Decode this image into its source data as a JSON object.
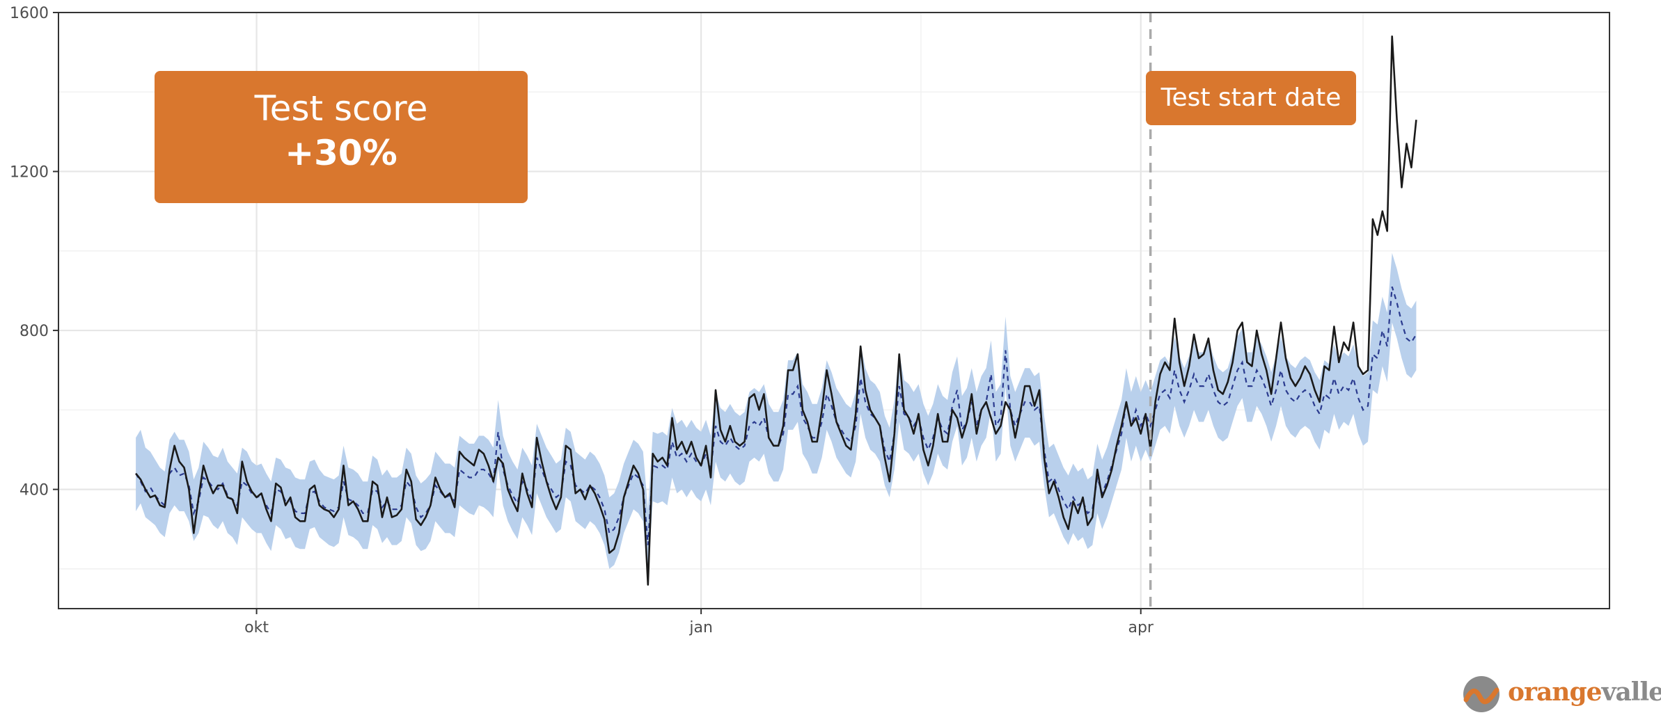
{
  "chart_data": {
    "type": "line",
    "title": "",
    "xlabel": "",
    "ylabel": "",
    "ylim": [
      100,
      1600
    ],
    "x_ticks": [
      "okt",
      "jan",
      "apr"
    ],
    "y_ticks": [
      400,
      800,
      1200,
      1600
    ],
    "grid": true,
    "legend": "none",
    "start_date": "2018-09-06",
    "x_tick_days": [
      25,
      117,
      208
    ],
    "test_start_day": 210,
    "series": [
      {
        "role": "actual",
        "style": "solid",
        "color": "#1a1a1a",
        "values": [
          440,
          425,
          400,
          380,
          385,
          360,
          355,
          450,
          510,
          470,
          455,
          400,
          290,
          380,
          460,
          420,
          390,
          410,
          410,
          380,
          375,
          340,
          470,
          420,
          395,
          380,
          390,
          350,
          320,
          415,
          405,
          360,
          380,
          330,
          320,
          320,
          400,
          410,
          360,
          350,
          345,
          330,
          350,
          460,
          360,
          370,
          350,
          320,
          320,
          420,
          410,
          330,
          380,
          330,
          335,
          350,
          450,
          420,
          325,
          310,
          330,
          360,
          430,
          400,
          380,
          390,
          355,
          495,
          480,
          470,
          460,
          500,
          490,
          460,
          420,
          480,
          465,
          400,
          370,
          345,
          440,
          390,
          355,
          530,
          470,
          420,
          380,
          350,
          380,
          510,
          500,
          390,
          400,
          375,
          410,
          390,
          360,
          325,
          240,
          250,
          290,
          380,
          420,
          460,
          440,
          400,
          160,
          490,
          470,
          480,
          460,
          580,
          500,
          520,
          490,
          520,
          480,
          460,
          510,
          430,
          650,
          550,
          520,
          560,
          520,
          510,
          520,
          630,
          640,
          600,
          640,
          530,
          510,
          510,
          560,
          700,
          700,
          740,
          600,
          570,
          520,
          520,
          600,
          700,
          640,
          570,
          540,
          510,
          500,
          590,
          760,
          650,
          600,
          580,
          560,
          480,
          420,
          540,
          740,
          600,
          580,
          540,
          590,
          500,
          460,
          510,
          590,
          520,
          520,
          600,
          580,
          530,
          570,
          640,
          540,
          600,
          620,
          580,
          540,
          560,
          620,
          600,
          530,
          590,
          660,
          660,
          610,
          650,
          480,
          390,
          420,
          380,
          330,
          300,
          370,
          340,
          380,
          310,
          330,
          450,
          380,
          410,
          450,
          510,
          560,
          620,
          560,
          580,
          540,
          590,
          500,
          620,
          690,
          720,
          700,
          830,
          720,
          660,
          710,
          790,
          730,
          740,
          780,
          700,
          650,
          640,
          670,
          720,
          800,
          820,
          720,
          710,
          800,
          740,
          700,
          640,
          730,
          820,
          730,
          680,
          660,
          680,
          710,
          690,
          650,
          620,
          710,
          700,
          810,
          720,
          770,
          750,
          820,
          710,
          690,
          700,
          1080,
          1040,
          1100,
          1050,
          1540,
          1330,
          1160,
          1270,
          1210,
          1330
        ]
      },
      {
        "role": "predicted",
        "style": "dashed",
        "color": "#2a3a8e",
        "values": [
          440,
          420,
          395,
          405,
          385,
          370,
          360,
          440,
          455,
          435,
          440,
          410,
          340,
          370,
          430,
          420,
          405,
          400,
          415,
          385,
          375,
          360,
          420,
          410,
          390,
          380,
          385,
          360,
          340,
          400,
          395,
          370,
          370,
          345,
          340,
          340,
          390,
          395,
          370,
          355,
          350,
          345,
          355,
          420,
          375,
          370,
          360,
          340,
          340,
          400,
          395,
          355,
          370,
          350,
          350,
          360,
          420,
          405,
          355,
          330,
          340,
          360,
          410,
          395,
          380,
          385,
          370,
          450,
          440,
          430,
          430,
          450,
          450,
          440,
          420,
          545,
          450,
          410,
          385,
          365,
          420,
          400,
          375,
          480,
          450,
          420,
          400,
          380,
          390,
          470,
          460,
          410,
          400,
          390,
          410,
          400,
          380,
          350,
          290,
          300,
          330,
          380,
          410,
          440,
          430,
          410,
          260,
          460,
          455,
          460,
          450,
          520,
          480,
          490,
          470,
          490,
          470,
          460,
          490,
          450,
          560,
          520,
          510,
          530,
          510,
          500,
          510,
          560,
          570,
          560,
          580,
          530,
          510,
          510,
          540,
          640,
          640,
          660,
          580,
          560,
          530,
          530,
          570,
          640,
          610,
          570,
          550,
          530,
          520,
          560,
          680,
          620,
          590,
          580,
          560,
          500,
          470,
          540,
          660,
          590,
          580,
          560,
          580,
          530,
          500,
          530,
          580,
          550,
          540,
          610,
          650,
          550,
          570,
          620,
          560,
          600,
          620,
          690,
          560,
          580,
          750,
          600,
          560,
          590,
          620,
          620,
          600,
          610,
          500,
          420,
          430,
          400,
          370,
          350,
          380,
          360,
          370,
          340,
          350,
          430,
          390,
          420,
          460,
          500,
          540,
          620,
          560,
          600,
          560,
          590,
          560,
          600,
          640,
          650,
          630,
          700,
          650,
          620,
          650,
          690,
          660,
          660,
          690,
          650,
          620,
          610,
          620,
          660,
          700,
          720,
          660,
          660,
          700,
          680,
          650,
          610,
          650,
          700,
          650,
          630,
          620,
          640,
          650,
          640,
          610,
          590,
          640,
          630,
          680,
          640,
          660,
          650,
          680,
          630,
          600,
          610,
          740,
          730,
          800,
          760,
          910,
          870,
          820,
          780,
          770,
          790
        ]
      }
    ],
    "band": {
      "role": "prediction interval",
      "color": "#b9d0ec",
      "lower": [
        345,
        365,
        330,
        320,
        310,
        290,
        280,
        340,
        360,
        345,
        345,
        320,
        270,
        290,
        335,
        330,
        310,
        300,
        320,
        290,
        280,
        260,
        330,
        315,
        300,
        290,
        290,
        265,
        245,
        310,
        300,
        275,
        280,
        255,
        250,
        250,
        300,
        305,
        280,
        270,
        260,
        255,
        265,
        330,
        285,
        280,
        270,
        250,
        250,
        310,
        300,
        265,
        280,
        260,
        260,
        270,
        330,
        315,
        260,
        245,
        250,
        270,
        320,
        305,
        290,
        290,
        280,
        360,
        350,
        340,
        335,
        360,
        355,
        345,
        330,
        455,
        360,
        320,
        295,
        275,
        330,
        310,
        285,
        390,
        360,
        330,
        310,
        290,
        300,
        380,
        370,
        320,
        310,
        300,
        320,
        310,
        290,
        260,
        200,
        210,
        240,
        290,
        320,
        350,
        340,
        320,
        180,
        370,
        365,
        370,
        360,
        430,
        390,
        400,
        380,
        400,
        380,
        370,
        400,
        360,
        470,
        430,
        420,
        440,
        420,
        410,
        420,
        470,
        480,
        470,
        490,
        440,
        420,
        420,
        450,
        550,
        550,
        570,
        490,
        470,
        440,
        440,
        480,
        550,
        520,
        480,
        460,
        440,
        430,
        470,
        590,
        530,
        500,
        490,
        470,
        410,
        380,
        450,
        570,
        500,
        490,
        470,
        490,
        440,
        410,
        440,
        490,
        460,
        450,
        520,
        560,
        460,
        480,
        530,
        470,
        510,
        530,
        600,
        470,
        490,
        660,
        510,
        470,
        500,
        530,
        530,
        510,
        520,
        410,
        330,
        340,
        310,
        280,
        260,
        290,
        270,
        280,
        250,
        260,
        340,
        300,
        330,
        370,
        410,
        450,
        530,
        470,
        510,
        470,
        500,
        470,
        510,
        550,
        560,
        540,
        610,
        560,
        530,
        560,
        600,
        570,
        570,
        600,
        560,
        530,
        520,
        530,
        570,
        610,
        630,
        570,
        570,
        610,
        590,
        560,
        520,
        560,
        610,
        560,
        540,
        530,
        550,
        560,
        550,
        520,
        500,
        550,
        540,
        590,
        550,
        570,
        560,
        590,
        540,
        510,
        520,
        650,
        640,
        710,
        670,
        820,
        780,
        730,
        690,
        680,
        700
      ],
      "upper": [
        530,
        550,
        505,
        495,
        475,
        455,
        445,
        525,
        545,
        525,
        525,
        495,
        425,
        455,
        520,
        505,
        485,
        480,
        505,
        470,
        455,
        440,
        505,
        495,
        470,
        460,
        465,
        440,
        420,
        480,
        475,
        455,
        450,
        430,
        425,
        425,
        470,
        475,
        450,
        435,
        430,
        425,
        435,
        510,
        455,
        450,
        440,
        420,
        420,
        485,
        475,
        435,
        450,
        430,
        430,
        440,
        505,
        490,
        435,
        415,
        425,
        440,
        495,
        480,
        465,
        465,
        455,
        535,
        525,
        515,
        515,
        535,
        535,
        525,
        505,
        625,
        535,
        495,
        470,
        450,
        505,
        485,
        460,
        565,
        535,
        505,
        485,
        465,
        475,
        555,
        545,
        495,
        485,
        475,
        495,
        485,
        465,
        435,
        380,
        390,
        420,
        465,
        495,
        525,
        515,
        495,
        350,
        545,
        540,
        545,
        535,
        605,
        565,
        575,
        555,
        575,
        555,
        545,
        575,
        535,
        645,
        605,
        595,
        615,
        595,
        585,
        595,
        645,
        655,
        645,
        665,
        615,
        595,
        595,
        625,
        725,
        725,
        745,
        665,
        645,
        615,
        615,
        655,
        725,
        695,
        655,
        635,
        615,
        605,
        645,
        765,
        705,
        675,
        665,
        645,
        585,
        555,
        625,
        745,
        675,
        665,
        645,
        665,
        615,
        585,
        615,
        665,
        635,
        625,
        695,
        735,
        635,
        655,
        705,
        645,
        685,
        705,
        775,
        645,
        665,
        835,
        685,
        645,
        675,
        705,
        705,
        685,
        695,
        585,
        505,
        515,
        485,
        455,
        435,
        465,
        445,
        455,
        425,
        435,
        515,
        475,
        505,
        545,
        585,
        625,
        705,
        645,
        685,
        645,
        675,
        645,
        685,
        725,
        735,
        715,
        785,
        735,
        705,
        735,
        775,
        745,
        745,
        775,
        735,
        705,
        695,
        705,
        745,
        785,
        805,
        745,
        745,
        785,
        765,
        735,
        695,
        735,
        785,
        735,
        715,
        705,
        725,
        735,
        725,
        695,
        675,
        725,
        715,
        765,
        725,
        745,
        735,
        765,
        715,
        685,
        695,
        825,
        815,
        885,
        845,
        995,
        955,
        905,
        865,
        855,
        875
      ]
    }
  },
  "annotations": {
    "score_title": "Test score",
    "score_value": "+30%",
    "start_label": "Test start date"
  },
  "logo": {
    "text_orange": "orange",
    "text_grey": "valley",
    "orange": "#d9772e",
    "grey": "#8a8a8a"
  }
}
